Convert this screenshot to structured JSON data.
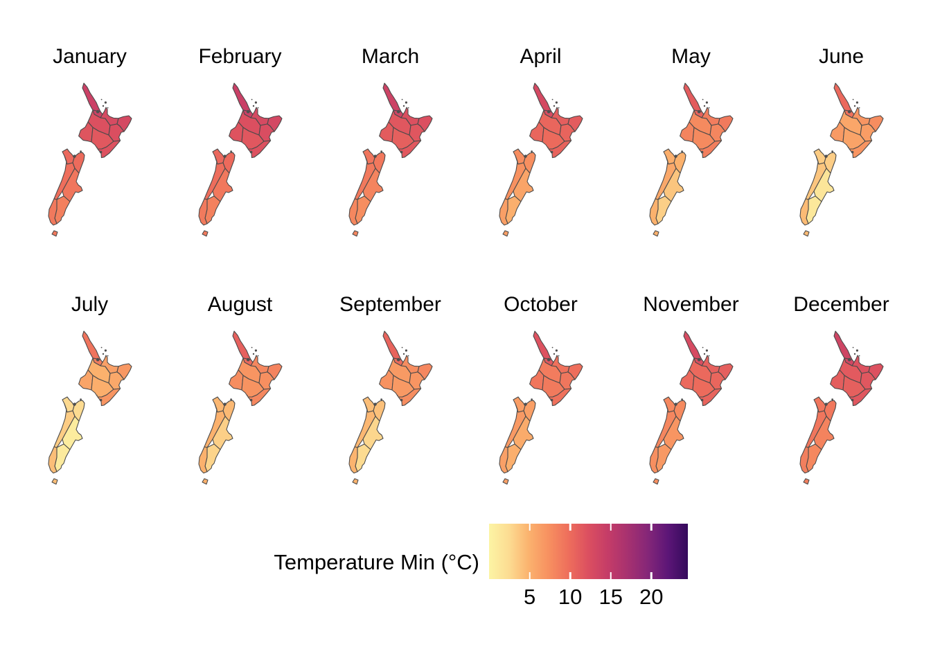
{
  "page": {
    "background": "#FFFFFF",
    "text_color": "#000000"
  },
  "chart_data": {
    "type": "choropleth",
    "subtype": "faceted-small-multiples",
    "geography": "New Zealand regions",
    "map_border_color": "#4A4A4A",
    "urban_speck_color": "#4F4F4F",
    "regions": [
      {
        "key": "northland",
        "name": "Northland"
      },
      {
        "key": "auckland",
        "name": "Auckland"
      },
      {
        "key": "waikato",
        "name": "Waikato"
      },
      {
        "key": "bay_of_plenty",
        "name": "Bay of Plenty"
      },
      {
        "key": "gisborne",
        "name": "Gisborne"
      },
      {
        "key": "hawkes_bay",
        "name": "Hawke's Bay"
      },
      {
        "key": "taranaki",
        "name": "Taranaki"
      },
      {
        "key": "manawatu_whanganui",
        "name": "Manawatu-Whanganui"
      },
      {
        "key": "wellington",
        "name": "Wellington"
      },
      {
        "key": "tasman_nelson",
        "name": "Tasman / Nelson"
      },
      {
        "key": "marlborough",
        "name": "Marlborough"
      },
      {
        "key": "west_coast",
        "name": "West Coast"
      },
      {
        "key": "canterbury",
        "name": "Canterbury"
      },
      {
        "key": "otago",
        "name": "Otago"
      },
      {
        "key": "southland",
        "name": "Southland"
      }
    ],
    "facets": [
      {
        "label": "January",
        "values": {
          "northland": 14.0,
          "auckland": 13.8,
          "waikato": 12.2,
          "bay_of_plenty": 12.8,
          "gisborne": 13.0,
          "hawkes_bay": 12.4,
          "taranaki": 11.8,
          "manawatu_whanganui": 11.5,
          "wellington": 12.0,
          "tasman_nelson": 10.2,
          "marlborough": 10.0,
          "west_coast": 9.8,
          "canterbury": 9.2,
          "otago": 8.5,
          "southland": 9.0
        }
      },
      {
        "label": "February",
        "values": {
          "northland": 14.2,
          "auckland": 14.0,
          "waikato": 12.3,
          "bay_of_plenty": 12.9,
          "gisborne": 13.1,
          "hawkes_bay": 12.5,
          "taranaki": 11.9,
          "manawatu_whanganui": 11.6,
          "wellington": 12.1,
          "tasman_nelson": 10.3,
          "marlborough": 10.1,
          "west_coast": 9.9,
          "canterbury": 9.1,
          "otago": 8.4,
          "southland": 8.9
        }
      },
      {
        "label": "March",
        "values": {
          "northland": 13.8,
          "auckland": 13.5,
          "waikato": 11.6,
          "bay_of_plenty": 12.2,
          "gisborne": 12.3,
          "hawkes_bay": 11.7,
          "taranaki": 11.2,
          "manawatu_whanganui": 10.9,
          "wellington": 11.5,
          "tasman_nelson": 9.3,
          "marlborough": 9.1,
          "west_coast": 9.0,
          "canterbury": 8.2,
          "otago": 7.5,
          "southland": 8.0
        }
      },
      {
        "label": "April",
        "values": {
          "northland": 13.0,
          "auckland": 12.6,
          "waikato": 10.4,
          "bay_of_plenty": 11.1,
          "gisborne": 11.2,
          "hawkes_bay": 10.6,
          "taranaki": 10.4,
          "manawatu_whanganui": 10.1,
          "wellington": 10.7,
          "tasman_nelson": 7.6,
          "marlborough": 7.4,
          "west_coast": 7.3,
          "canterbury": 5.9,
          "otago": 5.1,
          "southland": 6.3
        }
      },
      {
        "label": "May",
        "values": {
          "northland": 11.2,
          "auckland": 10.7,
          "waikato": 7.8,
          "bay_of_plenty": 8.7,
          "gisborne": 8.9,
          "hawkes_bay": 8.1,
          "taranaki": 8.2,
          "manawatu_whanganui": 7.8,
          "wellington": 8.6,
          "tasman_nelson": 5.2,
          "marlborough": 5.0,
          "west_coast": 5.6,
          "canterbury": 3.8,
          "otago": 3.2,
          "southland": 5.0
        }
      },
      {
        "label": "June",
        "values": {
          "northland": 10.2,
          "auckland": 9.6,
          "waikato": 5.8,
          "bay_of_plenty": 7.0,
          "gisborne": 7.6,
          "hawkes_bay": 6.4,
          "taranaki": 6.6,
          "manawatu_whanganui": 6.0,
          "wellington": 7.0,
          "tasman_nelson": 3.4,
          "marlborough": 3.3,
          "west_coast": 3.8,
          "canterbury": 1.5,
          "otago": 1.2,
          "southland": 4.4
        }
      },
      {
        "label": "July",
        "values": {
          "northland": 9.4,
          "auckland": 8.8,
          "waikato": 5.0,
          "bay_of_plenty": 6.2,
          "gisborne": 6.8,
          "hawkes_bay": 5.6,
          "taranaki": 5.9,
          "manawatu_whanganui": 5.2,
          "wellington": 7.0,
          "tasman_nelson": 2.6,
          "marlborough": 2.5,
          "west_coast": 3.4,
          "canterbury": 0.8,
          "otago": 1.0,
          "southland": 4.2
        }
      },
      {
        "label": "August",
        "values": {
          "northland": 10.8,
          "auckland": 10.2,
          "waikato": 7.0,
          "bay_of_plenty": 8.0,
          "gisborne": 8.3,
          "hawkes_bay": 7.4,
          "taranaki": 7.6,
          "manawatu_whanganui": 7.1,
          "wellington": 8.0,
          "tasman_nelson": 4.6,
          "marlborough": 4.5,
          "west_coast": 5.0,
          "canterbury": 3.2,
          "otago": 2.9,
          "southland": 5.0
        }
      },
      {
        "label": "September",
        "values": {
          "northland": 10.6,
          "auckland": 10.0,
          "waikato": 6.6,
          "bay_of_plenty": 7.6,
          "gisborne": 8.0,
          "hawkes_bay": 7.0,
          "taranaki": 7.2,
          "manawatu_whanganui": 6.7,
          "wellington": 7.6,
          "tasman_nelson": 4.2,
          "marlborough": 4.1,
          "west_coast": 4.6,
          "canterbury": 2.8,
          "otago": 2.5,
          "southland": 4.8
        }
      },
      {
        "label": "October",
        "values": {
          "northland": 12.0,
          "auckland": 11.5,
          "waikato": 8.8,
          "bay_of_plenty": 9.6,
          "gisborne": 9.8,
          "hawkes_bay": 9.2,
          "taranaki": 9.2,
          "manawatu_whanganui": 8.9,
          "wellington": 9.6,
          "tasman_nelson": 6.4,
          "marlborough": 6.3,
          "west_coast": 6.7,
          "canterbury": 5.4,
          "otago": 5.1,
          "southland": 6.2
        }
      },
      {
        "label": "November",
        "values": {
          "northland": 12.8,
          "auckland": 12.4,
          "waikato": 10.2,
          "bay_of_plenty": 10.8,
          "gisborne": 10.9,
          "hawkes_bay": 10.4,
          "taranaki": 10.2,
          "manawatu_whanganui": 10.0,
          "wellington": 10.6,
          "tasman_nelson": 7.9,
          "marlborough": 7.8,
          "west_coast": 8.1,
          "canterbury": 7.0,
          "otago": 6.7,
          "southland": 7.4
        }
      },
      {
        "label": "December",
        "values": {
          "northland": 13.6,
          "auckland": 13.3,
          "waikato": 11.4,
          "bay_of_plenty": 12.0,
          "gisborne": 12.1,
          "hawkes_bay": 11.6,
          "taranaki": 11.1,
          "manawatu_whanganui": 10.9,
          "wellington": 11.6,
          "tasman_nelson": 9.2,
          "marlborough": 9.1,
          "west_coast": 9.2,
          "canterbury": 8.3,
          "otago": 7.9,
          "southland": 8.6
        }
      }
    ],
    "legend": {
      "title": "Temperature Min (°C)",
      "ticks": [
        5,
        10,
        15,
        20
      ],
      "domain": [
        0,
        24.5
      ],
      "tick_mark_color": "#FFFFFF",
      "gradient_stops": [
        {
          "t": 0.0,
          "color": "#FCF4A4"
        },
        {
          "t": 0.1,
          "color": "#FCDC92"
        },
        {
          "t": 0.2,
          "color": "#FBB26E"
        },
        {
          "t": 0.3,
          "color": "#F79060"
        },
        {
          "t": 0.4,
          "color": "#EE6E5C"
        },
        {
          "t": 0.5,
          "color": "#DB4F60"
        },
        {
          "t": 0.6,
          "color": "#C43C68"
        },
        {
          "t": 0.7,
          "color": "#A63170"
        },
        {
          "t": 0.8,
          "color": "#842678"
        },
        {
          "t": 0.9,
          "color": "#5C1677"
        },
        {
          "t": 1.0,
          "color": "#340A5C"
        }
      ]
    }
  }
}
